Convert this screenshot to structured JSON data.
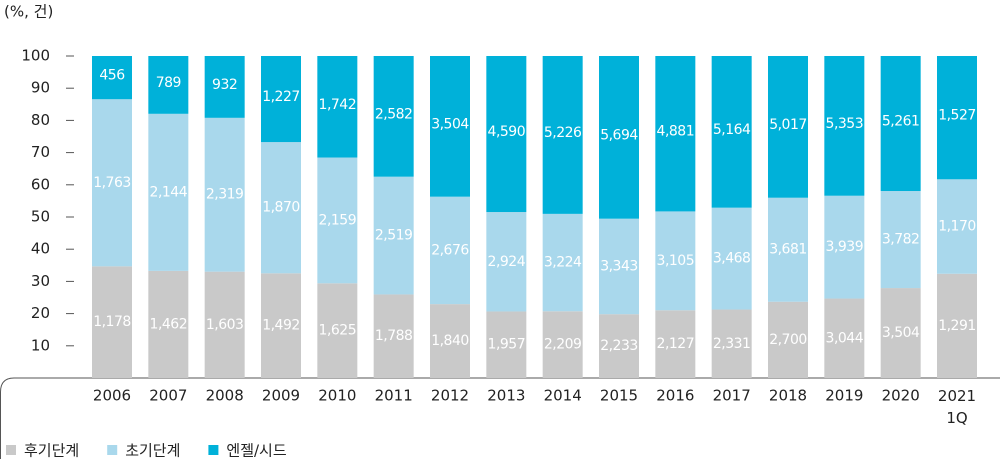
{
  "chart_data": {
    "type": "stacked_percent_bar",
    "unit_label": "(%, 건)",
    "categories": [
      "2006",
      "2007",
      "2008",
      "2009",
      "2010",
      "2011",
      "2012",
      "2013",
      "2014",
      "2015",
      "2016",
      "2017",
      "2018",
      "2019",
      "2020",
      "2021 1Q"
    ],
    "ylim": [
      0,
      100
    ],
    "yticks": [
      10,
      20,
      30,
      40,
      50,
      60,
      70,
      80,
      90,
      100
    ],
    "series": [
      {
        "name": "후기단계",
        "color": "#c9c9c9",
        "values": [
          1178,
          1462,
          1603,
          1492,
          1625,
          1788,
          1840,
          1957,
          2209,
          2233,
          2127,
          2331,
          2700,
          3044,
          3504,
          1291
        ],
        "value_labels": [
          "1,178",
          "1,462",
          "1,603",
          "1,492",
          "1,625",
          "1,788",
          "1,840",
          "1,957",
          "2,209",
          "2,233",
          "2,127",
          "2,331",
          "2,700",
          "3,044",
          "3,504",
          "1,291"
        ]
      },
      {
        "name": "초기단계",
        "color": "#a9d8ec",
        "values": [
          1763,
          2144,
          2319,
          1870,
          2159,
          2519,
          2676,
          2924,
          3224,
          3343,
          3105,
          3468,
          3681,
          3939,
          3782,
          1170
        ],
        "value_labels": [
          "1,763",
          "2,144",
          "2,319",
          "1,870",
          "2,159",
          "2,519",
          "2,676",
          "2,924",
          "3,224",
          "3,343",
          "3,105",
          "3,468",
          "3,681",
          "3,939",
          "3,782",
          "1,170"
        ]
      },
      {
        "name": "엔젤/시드",
        "color": "#00b1d9",
        "values": [
          456,
          789,
          932,
          1227,
          1742,
          2582,
          3504,
          4590,
          5226,
          5694,
          4881,
          5164,
          5017,
          5353,
          5261,
          1527
        ],
        "value_labels": [
          "456",
          "789",
          "932",
          "1,227",
          "1,742",
          "2,582",
          "3,504",
          "4,590",
          "5,226",
          "5,694",
          "4,881",
          "5,164",
          "5,017",
          "5,353",
          "5,261",
          "1,527"
        ]
      }
    ]
  }
}
